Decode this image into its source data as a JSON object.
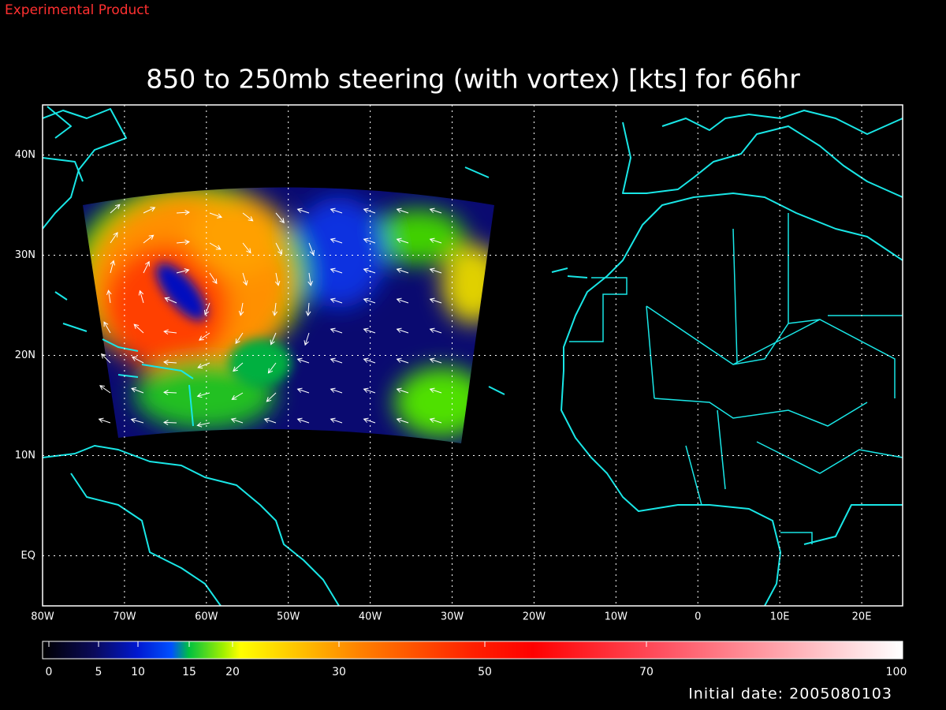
{
  "header": {
    "label": "Experimental Product"
  },
  "title": "850 to 250mb steering (with vortex) [kts] for 66hr",
  "map": {
    "xlim": [
      -80,
      25
    ],
    "ylim": [
      -5,
      45
    ],
    "xticks": [
      {
        "value": -80,
        "label": "80W"
      },
      {
        "value": -70,
        "label": "70W"
      },
      {
        "value": -60,
        "label": "60W"
      },
      {
        "value": -50,
        "label": "50W"
      },
      {
        "value": -40,
        "label": "40W"
      },
      {
        "value": -30,
        "label": "30W"
      },
      {
        "value": -20,
        "label": "20W"
      },
      {
        "value": -10,
        "label": "10W"
      },
      0,
      {
        "value": 10,
        "label": "10E"
      },
      {
        "value": 20,
        "label": "20E"
      }
    ],
    "yticks": [
      {
        "value": 0,
        "label": "EQ"
      },
      {
        "value": 10,
        "label": "10N"
      },
      {
        "value": 20,
        "label": "20N"
      },
      {
        "value": 30,
        "label": "30N"
      },
      {
        "value": 40,
        "label": "40N"
      }
    ],
    "grid": true
  },
  "colorbar": {
    "ticks": [
      0,
      5,
      10,
      15,
      20,
      30,
      50,
      70,
      100
    ]
  },
  "footer": {
    "initial_date": "Initial date: 2005080103"
  }
}
